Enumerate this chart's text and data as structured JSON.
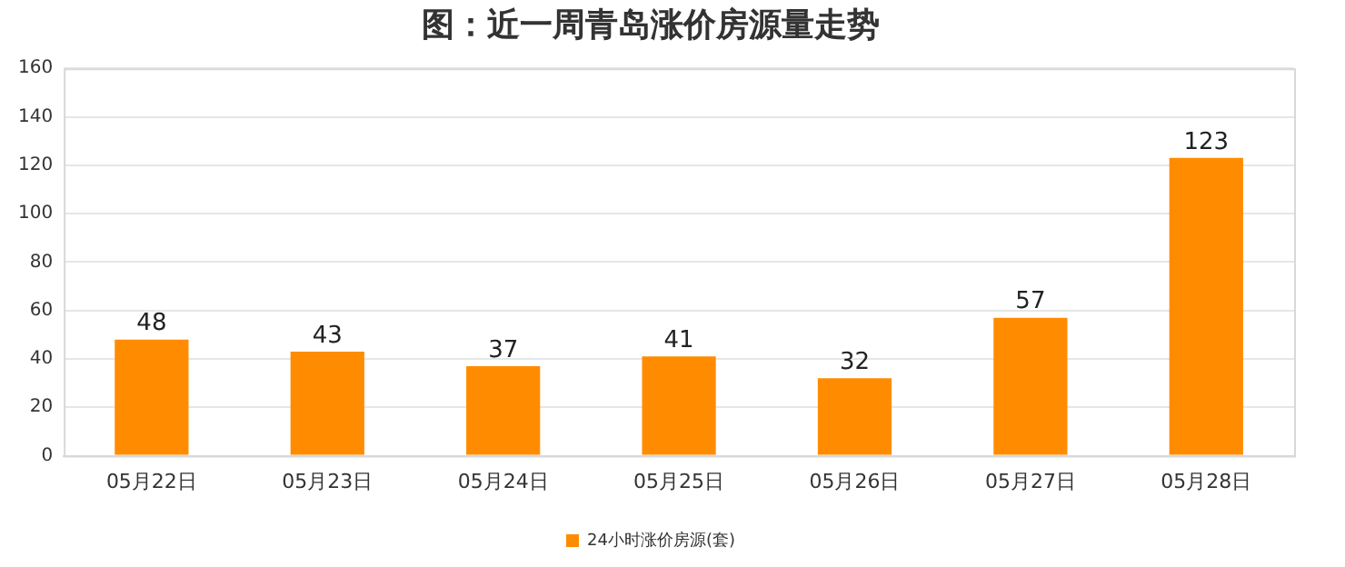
{
  "chart_data": {
    "type": "bar",
    "title": "图：近一周青岛涨价房源量走势",
    "categories": [
      "05月22日",
      "05月23日",
      "05月24日",
      "05月25日",
      "05月26日",
      "05月27日",
      "05月28日"
    ],
    "series": [
      {
        "name": "24小时涨价房源(套)",
        "color": "#ff8c00",
        "values": [
          48,
          43,
          37,
          41,
          32,
          57,
          123
        ]
      }
    ],
    "ylim": [
      0,
      160
    ],
    "yticks": [
      0,
      20,
      40,
      60,
      80,
      100,
      120,
      140,
      160
    ],
    "grid": "y",
    "legend": "bottom",
    "data_labels": true
  }
}
